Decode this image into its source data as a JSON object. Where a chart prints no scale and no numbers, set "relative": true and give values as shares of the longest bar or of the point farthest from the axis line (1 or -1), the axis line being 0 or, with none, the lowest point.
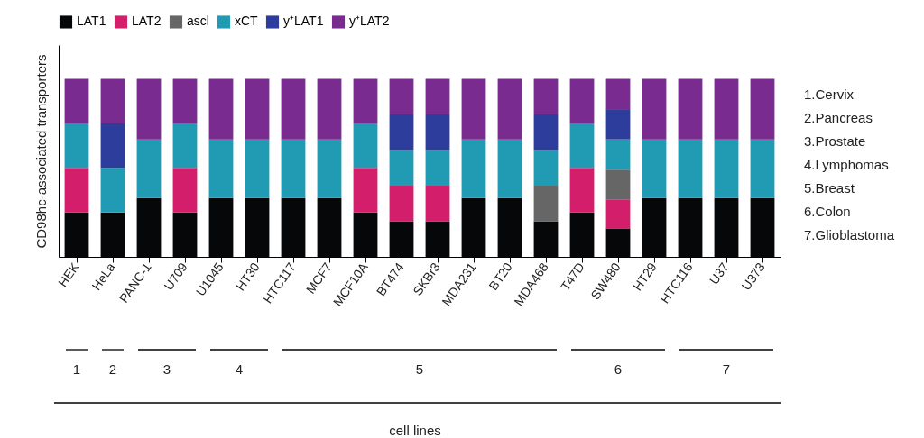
{
  "chart_data": {
    "type": "bar",
    "stacked": true,
    "relative": true,
    "ylabel": "CD98hc-associated transporters",
    "legend": "top",
    "categories": [
      "HEK",
      "HeLa",
      "PANC-1",
      "U709",
      "U1045",
      "HT30",
      "HTC117",
      "MCF7",
      "MCF10A",
      "BT474",
      "SKBr3",
      "MDA231",
      "BT20",
      "MDA468",
      "T47D",
      "SW480",
      "HT29",
      "HTC116",
      "U37",
      "U373"
    ],
    "series": [
      {
        "name": "LAT1",
        "color": "#050708",
        "values": [
          0.25,
          0.25,
          0.33,
          0.25,
          0.33,
          0.33,
          0.33,
          0.33,
          0.25,
          0.2,
          0.2,
          0.33,
          0.33,
          0.2,
          0.25,
          0.16,
          0.33,
          0.33,
          0.33,
          0.33
        ]
      },
      {
        "name": "LAT2",
        "color": "#d31f6b",
        "values": [
          0.25,
          null,
          null,
          0.25,
          null,
          null,
          null,
          null,
          0.25,
          0.2,
          0.2,
          null,
          null,
          null,
          0.25,
          0.16,
          null,
          null,
          null,
          null
        ]
      },
      {
        "name": "ascl",
        "color": "#666666",
        "values": [
          null,
          null,
          null,
          null,
          null,
          null,
          null,
          null,
          null,
          null,
          null,
          null,
          null,
          0.2,
          null,
          0.17,
          null,
          null,
          null,
          null
        ]
      },
      {
        "name": "xCT",
        "color": "#219bb3",
        "values": [
          0.25,
          0.25,
          0.33,
          0.25,
          0.33,
          0.33,
          0.33,
          0.33,
          0.25,
          0.2,
          0.2,
          0.33,
          0.33,
          0.2,
          0.25,
          0.17,
          0.33,
          0.33,
          0.33,
          0.33
        ]
      },
      {
        "name": "y⁺LAT1",
        "color": "#2c3d9b",
        "values": [
          null,
          0.25,
          null,
          null,
          null,
          null,
          null,
          null,
          null,
          0.2,
          0.2,
          null,
          null,
          0.2,
          null,
          0.17,
          null,
          null,
          null,
          null
        ]
      },
      {
        "name": "y⁺LAT2",
        "color": "#7a2b8f",
        "values": [
          0.25,
          0.25,
          0.34,
          0.25,
          0.34,
          0.34,
          0.34,
          0.34,
          0.25,
          0.2,
          0.2,
          0.34,
          0.34,
          0.2,
          0.25,
          0.17,
          0.34,
          0.34,
          0.34,
          0.34
        ]
      }
    ],
    "annotations": [
      "1",
      "2",
      "3",
      "4",
      "5",
      "6",
      "7",
      "1.Cervix",
      "2.Pancreas",
      "3.Prostate",
      "4.Lymphomas",
      "5.Breast",
      "6.Colon",
      "7.Glioblastoma",
      "cell lines"
    ]
  }
}
